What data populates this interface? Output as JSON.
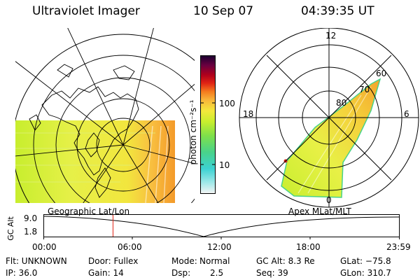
{
  "header": {
    "instrument": "Ultraviolet Imager",
    "date": "10 Sep 07",
    "time": "04:39:35 UT"
  },
  "geo_map": {
    "label": "Geographic Lat/Lon"
  },
  "polar_map": {
    "label": "Apex MLat/MLT",
    "mlt_labels": [
      "12",
      "18",
      "6",
      "0"
    ],
    "lat_labels": [
      "80",
      "70",
      "60"
    ]
  },
  "colorbar": {
    "unit": "photon cm⁻²s⁻¹",
    "tick_labels": [
      "100",
      "10"
    ],
    "colors": [
      "#f4f4f4",
      "#9fe8e8",
      "#3dd2d2",
      "#49d28a",
      "#7fe04a",
      "#c8ee2e",
      "#f4e83c",
      "#f8b43a",
      "#f47a1e",
      "#e02414",
      "#b0001c",
      "#6a0040",
      "#1a0030"
    ]
  },
  "timeline": {
    "y_axis_label": "GC Alt",
    "y_ticks": [
      "9.0",
      "1.8"
    ],
    "x_ticks": [
      "00:00",
      "06:00",
      "12:00",
      "18:00",
      "23:59"
    ],
    "current_time_hours": 4.66
  },
  "info": {
    "filter": "Flt: UNKNOWN",
    "door": "Door: Fullex",
    "mode_label": "Mode:",
    "mode_value": "Normal",
    "gc_alt": "GC Alt: 8.3 Re",
    "glat": "GLat: −75.8",
    "ip": "IP: 36.0",
    "gain": "Gain: 14",
    "dsp_label": "Dsp:",
    "dsp_value": "2.5",
    "seq": "Seq: 39",
    "glon": "GLon: 310.7"
  }
}
